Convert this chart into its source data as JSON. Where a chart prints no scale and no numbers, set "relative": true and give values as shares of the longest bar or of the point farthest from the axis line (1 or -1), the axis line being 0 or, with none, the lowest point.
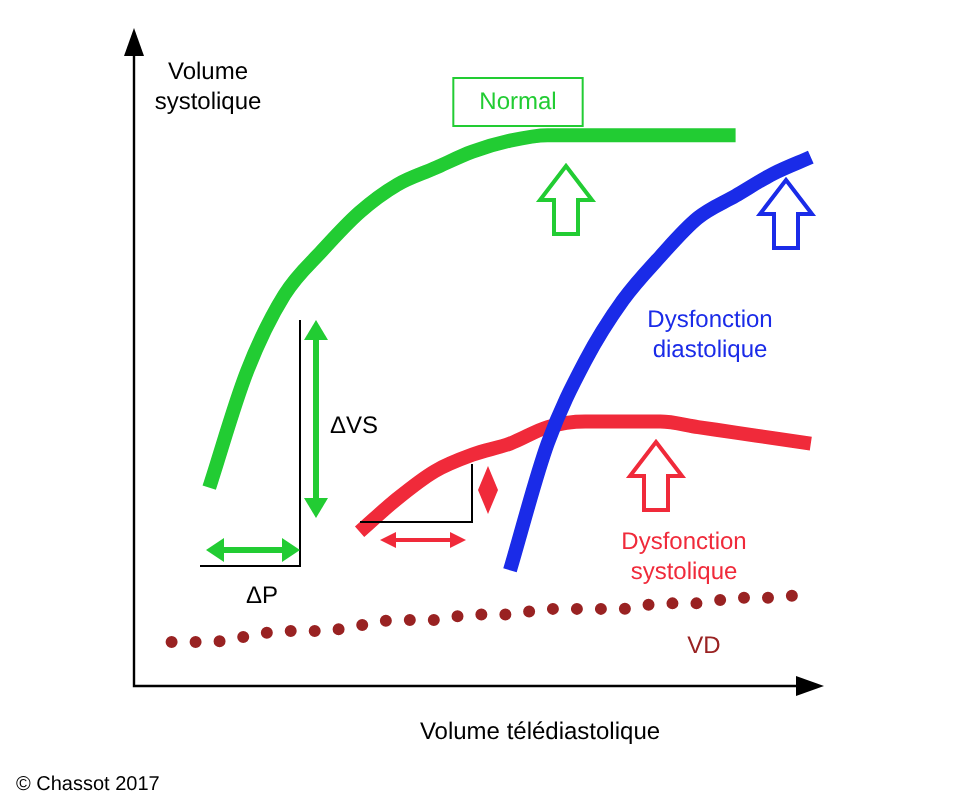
{
  "chart_data": {
    "type": "line",
    "relative": true,
    "marker": "none",
    "xlabel": "Volume télédiastolique",
    "ylabel": "Volume systolique",
    "categories": [
      null,
      null,
      null,
      null,
      null,
      null,
      null,
      null,
      null,
      null,
      null,
      null,
      null,
      null,
      null,
      null,
      null,
      null,
      null
    ],
    "series": [
      {
        "name": "Normal",
        "color": "#22cc33",
        "line_style": "solid",
        "values": [
          null,
          null,
          0.36,
          0.57,
          0.71,
          0.79,
          0.86,
          0.91,
          0.94,
          0.97,
          0.99,
          1,
          1,
          1,
          1,
          1,
          1,
          null,
          null
        ]
      },
      {
        "name": "Dysfonction diastolique",
        "color": "#1a2be8",
        "line_style": "solid",
        "values": [
          null,
          null,
          null,
          null,
          null,
          null,
          null,
          null,
          null,
          null,
          0.21,
          0.44,
          0.59,
          0.7,
          0.78,
          0.85,
          0.89,
          0.93,
          0.96
        ]
      },
      {
        "name": "Dysfonction systolique",
        "color": "#f02a3a",
        "line_style": "solid",
        "values": [
          null,
          null,
          null,
          null,
          null,
          null,
          0.28,
          0.34,
          0.39,
          0.42,
          0.44,
          0.47,
          0.48,
          0.48,
          0.48,
          0.47,
          0.46,
          0.45,
          0.44
        ]
      },
      {
        "name": "VD",
        "color": "#992222",
        "line_style": "dotted",
        "values": [
          null,
          0.08,
          0.08,
          0.09,
          0.1,
          0.1,
          0.11,
          0.12,
          0.12,
          0.13,
          0.13,
          0.14,
          0.14,
          0.14,
          0.15,
          0.15,
          0.16,
          0.16,
          0.17
        ]
      }
    ],
    "annotations": [
      "ΔVS",
      "ΔP",
      "© Chassot 2017"
    ]
  }
}
